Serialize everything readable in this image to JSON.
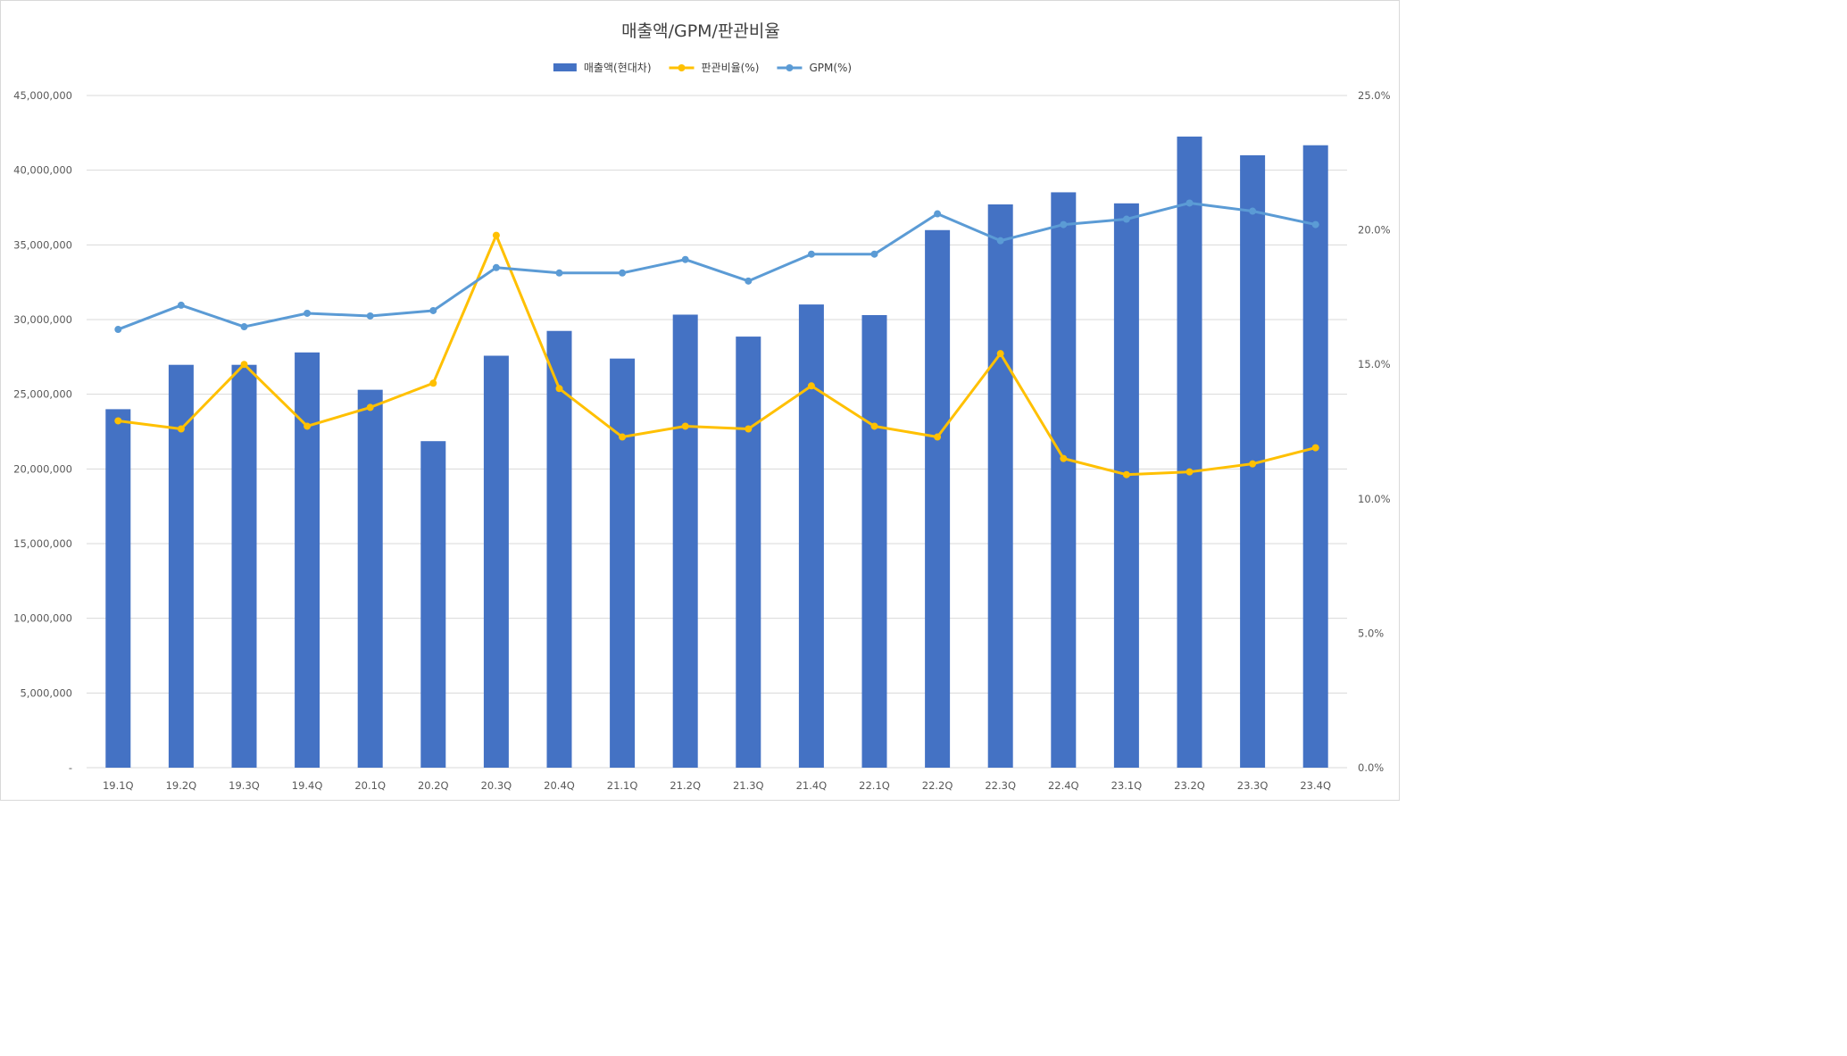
{
  "chart_data": {
    "type": "bar",
    "title": "매출액/GPM/판관비율",
    "categories": [
      "19.1Q",
      "19.2Q",
      "19.3Q",
      "19.4Q",
      "20.1Q",
      "20.2Q",
      "20.3Q",
      "20.4Q",
      "21.1Q",
      "21.2Q",
      "21.3Q",
      "21.4Q",
      "22.1Q",
      "22.2Q",
      "22.3Q",
      "22.4Q",
      "23.1Q",
      "23.2Q",
      "23.3Q",
      "23.4Q"
    ],
    "series": [
      {
        "name": "매출액(현대차)",
        "type": "bar",
        "axis": "left",
        "color": "#4472c4",
        "values": [
          24000000,
          26970000,
          26970000,
          27800000,
          25300000,
          21860000,
          27580000,
          29240000,
          27390000,
          30330000,
          28860000,
          31010000,
          30300000,
          35990000,
          37710000,
          38520000,
          37780000,
          42250000,
          41000000,
          41670000
        ]
      },
      {
        "name": "판관비율(%)",
        "type": "line",
        "axis": "right",
        "color": "#ffc000",
        "values": [
          12.9,
          12.6,
          15.0,
          12.7,
          13.4,
          14.3,
          19.8,
          14.1,
          12.3,
          12.7,
          12.6,
          14.2,
          12.7,
          12.3,
          15.4,
          11.5,
          10.9,
          11.0,
          11.3,
          11.9
        ]
      },
      {
        "name": "GPM(%)",
        "type": "line",
        "axis": "right",
        "color": "#5b9bd5",
        "values": [
          16.3,
          17.2,
          16.4,
          16.9,
          16.8,
          17.0,
          18.6,
          18.4,
          18.4,
          18.9,
          18.1,
          19.1,
          19.1,
          20.6,
          19.6,
          20.2,
          20.4,
          21.0,
          20.7,
          20.2
        ]
      }
    ],
    "y_left": {
      "range": [
        0,
        45000000
      ],
      "ticks": [
        0,
        5000000,
        10000000,
        15000000,
        20000000,
        25000000,
        30000000,
        35000000,
        40000000,
        45000000
      ],
      "tick_labels": [
        "-",
        "5,000,000",
        "10,000,000",
        "15,000,000",
        "20,000,000",
        "25,000,000",
        "30,000,000",
        "35,000,000",
        "40,000,000",
        "45,000,000"
      ]
    },
    "y_right": {
      "range": [
        0,
        25
      ],
      "ticks": [
        0,
        5,
        10,
        15,
        20,
        25
      ],
      "tick_labels": [
        "0.0%",
        "5.0%",
        "10.0%",
        "15.0%",
        "20.0%",
        "25.0%"
      ]
    },
    "grid": true,
    "legend_position": "top-center"
  }
}
